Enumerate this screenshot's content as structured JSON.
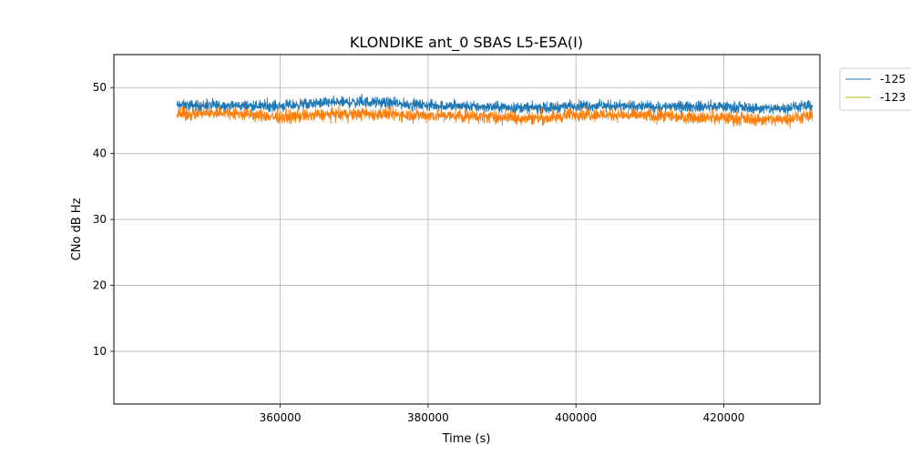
{
  "chart_data": {
    "type": "line",
    "title": "KLONDIKE ant_0 SBAS L5-E5A(I)",
    "xlabel": "Time (s)",
    "ylabel": "CNo dB Hz",
    "xlim": [
      337500,
      433000
    ],
    "ylim": [
      2,
      55
    ],
    "xticks": [
      360000,
      380000,
      400000,
      420000
    ],
    "yticks": [
      10,
      20,
      30,
      40,
      50
    ],
    "grid": true,
    "legend_position": "outside-top-right",
    "x_range": [
      346000,
      432000
    ],
    "series": [
      {
        "name": "-125",
        "color": "#1f77b4",
        "legend_color": "#1f77b4",
        "mean": 47.2,
        "noise_band": [
          46.0,
          48.5
        ],
        "trend": [
          [
            346000,
            47.3
          ],
          [
            360000,
            47.2
          ],
          [
            366000,
            47.7
          ],
          [
            372000,
            47.8
          ],
          [
            380000,
            47.3
          ],
          [
            390000,
            47.0
          ],
          [
            396000,
            46.9
          ],
          [
            400000,
            47.3
          ],
          [
            410000,
            47.1
          ],
          [
            420000,
            47.1
          ],
          [
            426000,
            46.8
          ],
          [
            432000,
            47.2
          ]
        ]
      },
      {
        "name": "-123",
        "color": "#ff7f0e",
        "legend_color": "#bcbd22",
        "mean": 45.8,
        "noise_band": [
          44.3,
          47.2
        ],
        "trend": [
          [
            346000,
            45.9
          ],
          [
            352000,
            46.2
          ],
          [
            360000,
            45.5
          ],
          [
            366000,
            45.9
          ],
          [
            372000,
            46.0
          ],
          [
            380000,
            45.8
          ],
          [
            390000,
            45.5
          ],
          [
            396000,
            45.3
          ],
          [
            400000,
            46.0
          ],
          [
            410000,
            45.7
          ],
          [
            420000,
            45.4
          ],
          [
            426000,
            45.1
          ],
          [
            432000,
            45.6
          ]
        ]
      }
    ]
  }
}
